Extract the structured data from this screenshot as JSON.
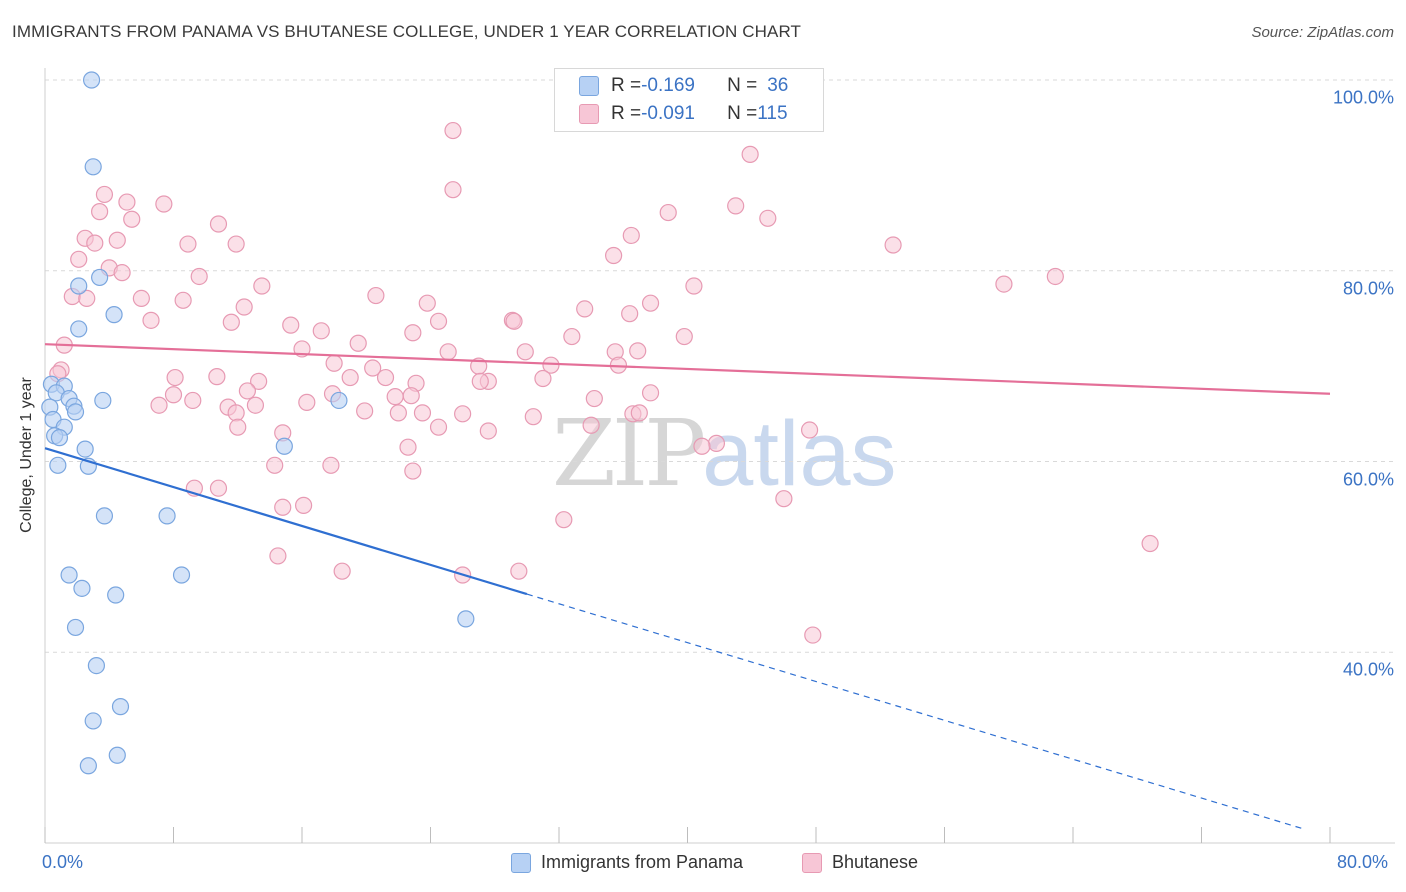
{
  "title": "IMMIGRANTS FROM PANAMA VS BHUTANESE COLLEGE, UNDER 1 YEAR CORRELATION CHART",
  "source": "Source: ZipAtlas.com",
  "watermark": {
    "zip": "ZIP",
    "atlas": "atlas"
  },
  "colors": {
    "blue_fill": "#b7d1f4",
    "blue_stroke": "#7aa6df",
    "blue_line": "#2f6fd1",
    "pink_fill": "#f7c6d6",
    "pink_stroke": "#e79ab3",
    "pink_line": "#e46f98",
    "grid": "#d9d9d9",
    "axis_text": "#3b73c4"
  },
  "legend": {
    "rows": [
      {
        "r_label": "R = ",
        "r_value": "-0.169",
        "n_label": "N = ",
        "n_value": "36"
      },
      {
        "r_label": "R = ",
        "r_value": "-0.091",
        "n_label": "N = ",
        "n_value": "115"
      }
    ]
  },
  "bottom_legend": {
    "series1": "Immigrants from Panama",
    "series2": "Bhutanese"
  },
  "chart_data": {
    "type": "scatter",
    "title": "IMMIGRANTS FROM PANAMA VS BHUTANESE COLLEGE, UNDER 1 YEAR CORRELATION CHART",
    "xlabel": "",
    "ylabel": "College, Under 1 year",
    "xlim": [
      0,
      80
    ],
    "ylim": [
      20,
      100
    ],
    "x_tick_labels": [
      "0.0%",
      "80.0%"
    ],
    "y_ticks": [
      {
        "value": 40,
        "label": "40.0%"
      },
      {
        "value": 60,
        "label": "60.0%"
      },
      {
        "value": 80,
        "label": "80.0%"
      },
      {
        "value": 100,
        "label": "100.0%"
      }
    ],
    "grid": true,
    "series": [
      {
        "name": "Immigrants from Panama",
        "R": -0.169,
        "N": 36,
        "trend": {
          "x0": 0,
          "y0": 61.4,
          "x1": 30,
          "y1": 46.1,
          "dashed_to_x": 78.5,
          "dashed_to_y": 21.4
        },
        "points": [
          [
            2.9,
            100.0
          ],
          [
            3.0,
            90.9
          ],
          [
            3.4,
            79.3
          ],
          [
            2.1,
            78.4
          ],
          [
            4.3,
            75.4
          ],
          [
            2.1,
            73.9
          ],
          [
            0.4,
            68.1
          ],
          [
            1.2,
            67.9
          ],
          [
            0.7,
            67.2
          ],
          [
            1.5,
            66.6
          ],
          [
            3.6,
            66.4
          ],
          [
            18.3,
            66.4
          ],
          [
            0.3,
            65.7
          ],
          [
            1.8,
            65.8
          ],
          [
            1.9,
            65.2
          ],
          [
            0.5,
            64.4
          ],
          [
            1.2,
            63.6
          ],
          [
            0.6,
            62.7
          ],
          [
            0.9,
            62.5
          ],
          [
            2.5,
            61.3
          ],
          [
            14.9,
            61.6
          ],
          [
            0.8,
            59.6
          ],
          [
            2.7,
            59.5
          ],
          [
            3.7,
            54.3
          ],
          [
            7.6,
            54.3
          ],
          [
            1.5,
            48.1
          ],
          [
            8.5,
            48.1
          ],
          [
            2.3,
            46.7
          ],
          [
            4.4,
            46.0
          ],
          [
            26.2,
            43.5
          ],
          [
            1.9,
            42.6
          ],
          [
            3.2,
            38.6
          ],
          [
            4.7,
            34.3
          ],
          [
            3.0,
            32.8
          ],
          [
            2.7,
            28.1
          ],
          [
            4.5,
            29.2
          ]
        ]
      },
      {
        "name": "Bhutanese",
        "R": -0.091,
        "N": 115,
        "trend": {
          "x0": 0,
          "y0": 72.3,
          "x1": 80,
          "y1": 67.1
        },
        "points": [
          [
            25.4,
            94.7
          ],
          [
            43.9,
            92.2
          ],
          [
            25.4,
            88.5
          ],
          [
            3.7,
            88.0
          ],
          [
            43.0,
            86.8
          ],
          [
            5.1,
            87.2
          ],
          [
            3.4,
            86.2
          ],
          [
            38.8,
            86.1
          ],
          [
            7.4,
            87.0
          ],
          [
            5.4,
            85.4
          ],
          [
            45.0,
            85.5
          ],
          [
            10.8,
            84.9
          ],
          [
            2.5,
            83.4
          ],
          [
            4.5,
            83.2
          ],
          [
            8.9,
            82.8
          ],
          [
            3.1,
            82.9
          ],
          [
            11.9,
            82.8
          ],
          [
            36.5,
            83.7
          ],
          [
            52.8,
            82.7
          ],
          [
            35.4,
            81.6
          ],
          [
            2.1,
            81.2
          ],
          [
            4.0,
            80.3
          ],
          [
            9.6,
            79.4
          ],
          [
            4.8,
            79.8
          ],
          [
            13.5,
            78.4
          ],
          [
            40.4,
            78.4
          ],
          [
            59.7,
            78.6
          ],
          [
            1.7,
            77.3
          ],
          [
            2.6,
            77.1
          ],
          [
            8.6,
            76.9
          ],
          [
            6.0,
            77.1
          ],
          [
            20.6,
            77.4
          ],
          [
            23.8,
            76.6
          ],
          [
            12.4,
            76.2
          ],
          [
            37.7,
            76.6
          ],
          [
            33.6,
            76.0
          ],
          [
            6.6,
            74.8
          ],
          [
            29.1,
            74.8
          ],
          [
            11.6,
            74.6
          ],
          [
            36.4,
            75.5
          ],
          [
            17.2,
            73.7
          ],
          [
            29.2,
            74.7
          ],
          [
            15.3,
            74.3
          ],
          [
            24.5,
            74.7
          ],
          [
            22.9,
            73.5
          ],
          [
            32.8,
            73.1
          ],
          [
            39.8,
            73.1
          ],
          [
            19.5,
            72.4
          ],
          [
            1.2,
            72.2
          ],
          [
            16.0,
            71.8
          ],
          [
            25.1,
            71.5
          ],
          [
            29.9,
            71.5
          ],
          [
            35.5,
            71.5
          ],
          [
            18.0,
            70.3
          ],
          [
            36.9,
            71.6
          ],
          [
            27.0,
            70.0
          ],
          [
            20.4,
            69.8
          ],
          [
            31.5,
            70.1
          ],
          [
            1.0,
            69.6
          ],
          [
            0.8,
            69.2
          ],
          [
            8.1,
            68.8
          ],
          [
            10.7,
            68.9
          ],
          [
            27.6,
            68.4
          ],
          [
            13.3,
            68.4
          ],
          [
            31.0,
            68.7
          ],
          [
            19.0,
            68.8
          ],
          [
            21.2,
            68.8
          ],
          [
            23.1,
            68.2
          ],
          [
            27.1,
            68.4
          ],
          [
            17.9,
            67.1
          ],
          [
            12.6,
            67.4
          ],
          [
            8.0,
            67.0
          ],
          [
            37.7,
            67.2
          ],
          [
            21.8,
            66.8
          ],
          [
            22.8,
            66.9
          ],
          [
            16.3,
            66.2
          ],
          [
            9.2,
            66.4
          ],
          [
            13.1,
            65.9
          ],
          [
            30.4,
            64.7
          ],
          [
            23.5,
            65.1
          ],
          [
            7.1,
            65.9
          ],
          [
            11.4,
            65.7
          ],
          [
            19.9,
            65.3
          ],
          [
            26.0,
            65.0
          ],
          [
            22.0,
            65.1
          ],
          [
            11.9,
            65.1
          ],
          [
            36.6,
            65.0
          ],
          [
            37.0,
            65.1
          ],
          [
            41.8,
            61.9
          ],
          [
            34.0,
            63.8
          ],
          [
            47.6,
            63.3
          ],
          [
            24.5,
            63.6
          ],
          [
            14.8,
            63.0
          ],
          [
            12.0,
            63.6
          ],
          [
            27.6,
            63.2
          ],
          [
            46.0,
            56.1
          ],
          [
            22.6,
            61.5
          ],
          [
            40.9,
            61.6
          ],
          [
            14.3,
            59.6
          ],
          [
            22.9,
            59.0
          ],
          [
            17.8,
            59.6
          ],
          [
            9.3,
            57.2
          ],
          [
            10.8,
            57.2
          ],
          [
            16.1,
            55.4
          ],
          [
            14.8,
            55.2
          ],
          [
            32.3,
            53.9
          ],
          [
            68.8,
            51.4
          ],
          [
            26.0,
            48.1
          ],
          [
            18.5,
            48.5
          ],
          [
            14.5,
            50.1
          ],
          [
            29.5,
            48.5
          ],
          [
            62.9,
            79.4
          ],
          [
            47.8,
            41.8
          ],
          [
            34.2,
            66.6
          ],
          [
            35.7,
            70.1
          ]
        ]
      }
    ]
  }
}
